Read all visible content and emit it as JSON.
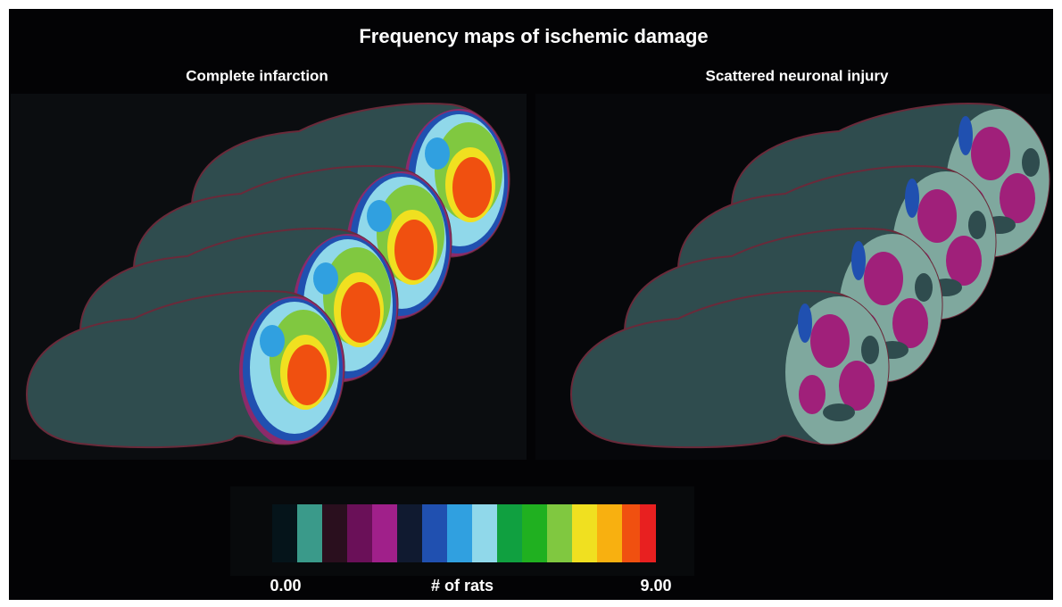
{
  "title": "Frequency maps of ischemic damage",
  "panels": [
    {
      "label": "Complete infarction"
    },
    {
      "label": "Scattered neuronal injury"
    }
  ],
  "colorbar": {
    "min_label": "0.00",
    "label": "# of rats",
    "max_label": "9.00"
  }
}
